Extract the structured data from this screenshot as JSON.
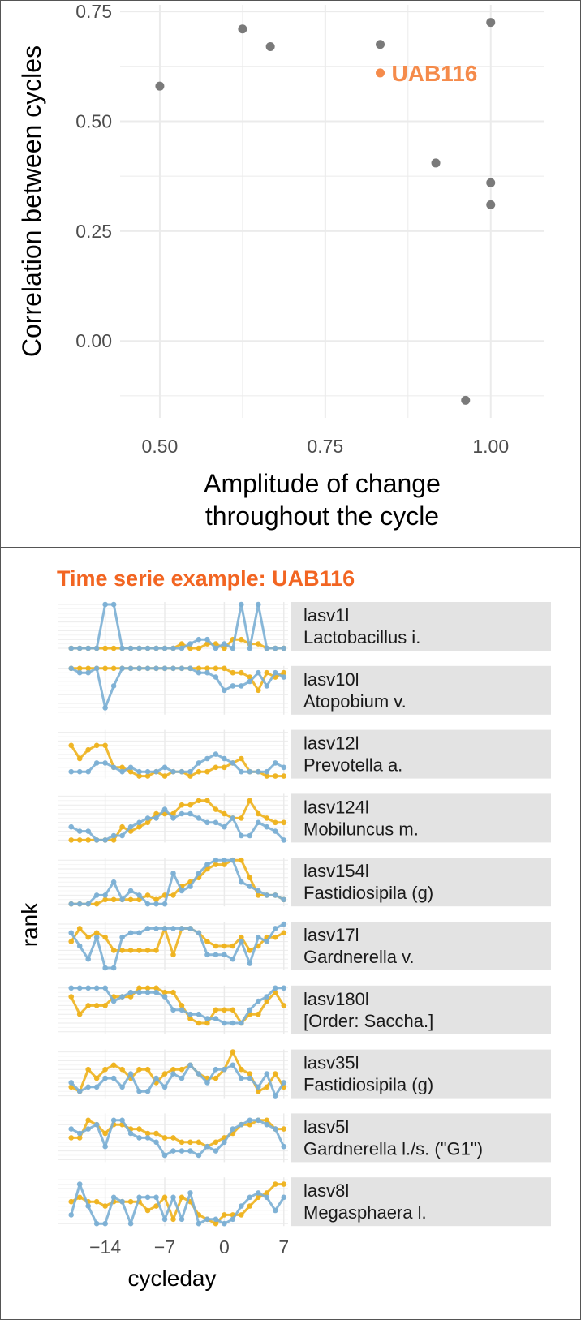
{
  "colors": {
    "point": "#7a7a7a",
    "highlight": "#f58b4b",
    "subtitle": "#f26522",
    "grid": "#ebebeb",
    "gridMinor": "#f4f4f4",
    "strip": "#e3e3e3",
    "blue": "#7bafd4",
    "yellow": "#eeb21e",
    "overlap": "#7a9a9a"
  },
  "chart_data": [
    {
      "type": "scatter",
      "xlabel": [
        "Amplitude of change",
        "throughout the cycle"
      ],
      "ylabel": "Correlation between cycles",
      "xlim": [
        0.44,
        1.08
      ],
      "ylim": [
        -0.175,
        0.765
      ],
      "xticks": [
        0.5,
        0.75,
        1.0
      ],
      "xtick_labels": [
        "0.50",
        "0.75",
        "1.00"
      ],
      "yticks": [
        0.0,
        0.25,
        0.5,
        0.75
      ],
      "ytick_labels": [
        "0.00",
        "0.25",
        "0.50",
        "0.75"
      ],
      "grid": true,
      "points": [
        {
          "x": 0.5,
          "y": 0.58
        },
        {
          "x": 0.625,
          "y": 0.71
        },
        {
          "x": 0.667,
          "y": 0.67
        },
        {
          "x": 0.833,
          "y": 0.675
        },
        {
          "x": 0.833,
          "y": 0.61,
          "label": "UAB116",
          "highlight": true
        },
        {
          "x": 0.917,
          "y": 0.405
        },
        {
          "x": 1.0,
          "y": 0.725
        },
        {
          "x": 1.0,
          "y": 0.36
        },
        {
          "x": 1.0,
          "y": 0.31
        },
        {
          "x": 0.962,
          "y": -0.135
        }
      ]
    },
    {
      "type": "line",
      "title": "Time serie example: UAB116",
      "xlabel": "cycleday",
      "ylabel": "rank",
      "xlim": [
        -19.5,
        7.5
      ],
      "xticks": [
        -14,
        -7,
        0,
        7
      ],
      "xtick_labels": [
        "−14",
        "−7",
        "0",
        "7"
      ],
      "x": [
        -18,
        -17,
        -16,
        -15,
        -14,
        -13,
        -12,
        -11,
        -10,
        -9,
        -8,
        -7,
        -6,
        -5,
        -4,
        -3,
        -2,
        -1,
        0,
        1,
        2,
        3,
        4,
        5,
        6,
        7
      ],
      "ylim": [
        0,
        10
      ],
      "panels": [
        {
          "asv": "lasv1l",
          "taxon": "Lactobacillus i.",
          "blue": [
            0,
            0,
            0,
            0,
            10,
            10,
            0,
            0,
            0,
            0,
            0,
            0,
            0,
            0,
            1,
            2,
            2,
            0,
            1,
            0,
            10,
            0,
            10,
            0,
            0,
            0
          ],
          "yellow": [
            0,
            0,
            0,
            0,
            0,
            0,
            0,
            0,
            0,
            0,
            0,
            0,
            0,
            1,
            0,
            0,
            1,
            1,
            0,
            2,
            2,
            1,
            1,
            0,
            0,
            0
          ]
        },
        {
          "asv": "lasv10l",
          "taxon": "Atopobium v.",
          "blue": [
            10,
            9,
            9,
            10,
            1,
            6,
            10,
            10,
            10,
            10,
            10,
            10,
            10,
            10,
            10,
            9,
            9,
            8,
            5,
            6,
            6,
            7,
            9,
            6,
            9,
            8
          ],
          "yellow": [
            10,
            10,
            10,
            10,
            10,
            10,
            10,
            10,
            10,
            10,
            10,
            10,
            10,
            10,
            10,
            10,
            10,
            10,
            10,
            9,
            9,
            8,
            5,
            9,
            8,
            9
          ]
        },
        {
          "asv": "lasv12l",
          "taxon": "Prevotella a.",
          "blue": [
            1,
            1,
            1,
            3,
            3,
            2,
            1,
            2,
            1,
            1,
            1,
            2,
            1,
            1,
            1,
            3,
            4,
            5,
            4,
            3,
            1,
            1,
            1,
            1,
            3,
            2
          ],
          "yellow": [
            7,
            4,
            6,
            7,
            7,
            2,
            2,
            1,
            0,
            0,
            1,
            0,
            1,
            1,
            0,
            1,
            1,
            2,
            2,
            3,
            4,
            1,
            1,
            0,
            0,
            0
          ]
        },
        {
          "asv": "lasv124l",
          "taxon": "Mobiluncus m.",
          "blue": [
            3,
            2,
            2,
            0,
            0,
            1,
            1,
            3,
            4,
            5,
            5,
            7,
            5,
            6,
            6,
            5,
            4,
            4,
            3,
            5,
            1,
            1,
            4,
            3,
            2,
            0
          ],
          "yellow": [
            0,
            0,
            0,
            0,
            0,
            0,
            3,
            2,
            3,
            4,
            6,
            6,
            6,
            8,
            8,
            9,
            9,
            7,
            6,
            5,
            5,
            9,
            6,
            5,
            4,
            4
          ]
        },
        {
          "asv": "lasv154l",
          "taxon": "Fastidiosipila (g)",
          "blue": [
            0,
            0,
            0,
            2,
            2,
            5,
            1,
            3,
            2,
            0,
            0,
            0,
            7,
            3,
            4,
            7,
            9,
            10,
            10,
            10,
            5,
            4,
            3,
            2,
            2,
            1
          ],
          "yellow": [
            0,
            0,
            0,
            0,
            1,
            1,
            1,
            1,
            1,
            2,
            1,
            2,
            2,
            4,
            5,
            6,
            8,
            9,
            9,
            10,
            10,
            6,
            2,
            2,
            2,
            1
          ]
        },
        {
          "asv": "lasv17l",
          "taxon": "Gardnerella v.",
          "blue": [
            8,
            5,
            2,
            7,
            0,
            0,
            7,
            8,
            8,
            9,
            9,
            9,
            9,
            9,
            9,
            8,
            3,
            3,
            3,
            2,
            6,
            1,
            7,
            6,
            9,
            10
          ],
          "yellow": [
            6,
            9,
            7,
            8,
            7,
            4,
            4,
            4,
            4,
            4,
            4,
            9,
            3,
            9,
            9,
            8,
            6,
            5,
            5,
            5,
            7,
            4,
            5,
            7,
            7,
            8
          ]
        },
        {
          "asv": "lasv180l",
          "taxon": "[Order: Saccha.]",
          "blue": [
            10,
            10,
            10,
            10,
            10,
            7,
            8,
            9,
            9,
            9,
            9,
            8,
            5,
            5,
            4,
            4,
            3,
            3,
            2,
            2,
            2,
            5,
            7,
            8,
            10,
            10
          ],
          "yellow": [
            8,
            4,
            6,
            6,
            6,
            8,
            8,
            8,
            10,
            10,
            10,
            9,
            9,
            6,
            3,
            2,
            2,
            5,
            5,
            5,
            2,
            4,
            4,
            7,
            9,
            6
          ]
        },
        {
          "asv": "lasv35l",
          "taxon": "Fastidiosipila (g)",
          "blue": [
            3,
            1,
            2,
            2,
            4,
            4,
            2,
            5,
            1,
            1,
            4,
            2,
            5,
            4,
            7,
            5,
            3,
            6,
            6,
            7,
            4,
            4,
            2,
            5,
            0,
            3
          ],
          "yellow": [
            2,
            1,
            6,
            4,
            6,
            7,
            6,
            4,
            6,
            6,
            3,
            5,
            6,
            6,
            7,
            5,
            4,
            4,
            6,
            10,
            6,
            5,
            1,
            2,
            5,
            2
          ]
        },
        {
          "asv": "lasv5l",
          "taxon": "Gardnerella l./s. (\"G1\")",
          "blue": [
            7,
            6,
            7,
            8,
            3,
            9,
            9,
            6,
            5,
            5,
            4,
            1,
            2,
            2,
            2,
            1,
            3,
            2,
            4,
            7,
            8,
            9,
            9,
            8,
            7,
            3
          ],
          "yellow": [
            5,
            5,
            9,
            8,
            6,
            8,
            8,
            7,
            7,
            6,
            6,
            5,
            5,
            4,
            4,
            4,
            3,
            4,
            5,
            6,
            8,
            8,
            9,
            9,
            7,
            7
          ]
        },
        {
          "asv": "lasv8l",
          "taxon": "Megasphaera l.",
          "blue": [
            2,
            9,
            4,
            0,
            0,
            6,
            5,
            0,
            6,
            6,
            6,
            1,
            6,
            1,
            7,
            0,
            1,
            1,
            0,
            1,
            4,
            6,
            7,
            6,
            3,
            6
          ],
          "yellow": [
            5,
            6,
            5,
            5,
            4,
            5,
            5,
            5,
            5,
            3,
            4,
            6,
            1,
            6,
            5,
            2,
            1,
            0,
            2,
            2,
            2,
            4,
            6,
            7,
            9,
            9
          ]
        }
      ]
    }
  ]
}
